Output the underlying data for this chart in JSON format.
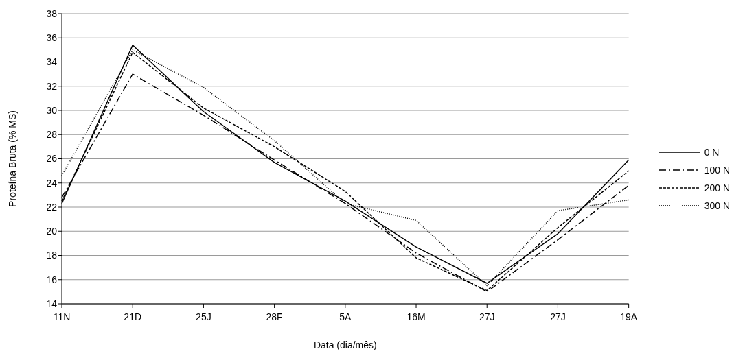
{
  "chart_data": {
    "type": "line",
    "xlabel": "Data (dia/mês)",
    "ylabel": "Proteína Bruta (% MS)",
    "categories": [
      "11N",
      "21D",
      "25J",
      "28F",
      "5A",
      "16M",
      "27J",
      "27J",
      "19A"
    ],
    "ylim": [
      14,
      38
    ],
    "yticks": [
      14,
      16,
      18,
      20,
      22,
      24,
      26,
      28,
      30,
      32,
      34,
      36,
      38
    ],
    "grid": "y",
    "legend": "right",
    "marker": "none",
    "series": [
      {
        "name": "0 N",
        "color": "#000000",
        "line_style": "solid",
        "values": [
          22.3,
          35.4,
          29.9,
          25.7,
          22.5,
          18.7,
          15.7,
          19.8,
          25.9
        ]
      },
      {
        "name": "100 N",
        "color": "#000000",
        "line_style": "dashdot",
        "values": [
          22.8,
          33.0,
          29.6,
          25.9,
          22.3,
          18.2,
          15.0,
          19.3,
          23.8
        ]
      },
      {
        "name": "200 N",
        "color": "#000000",
        "line_style": "dashed",
        "values": [
          22.5,
          34.8,
          30.2,
          27.0,
          23.3,
          17.8,
          15.1,
          20.3,
          25.0
        ]
      },
      {
        "name": "300 N",
        "color": "#000000",
        "line_style": "dotted",
        "values": [
          24.6,
          35.0,
          31.9,
          27.5,
          22.3,
          20.9,
          15.5,
          21.7,
          22.6
        ]
      }
    ]
  }
}
